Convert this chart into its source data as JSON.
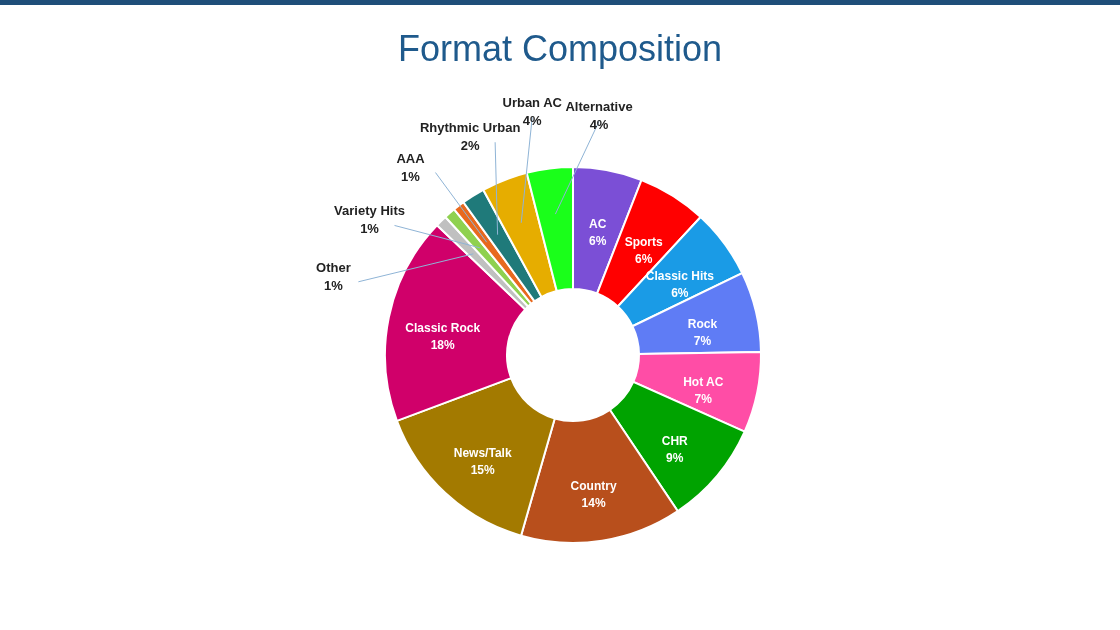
{
  "chart_data": {
    "type": "donut",
    "title": "Format Composition",
    "categories": [
      "AC",
      "Sports",
      "Classic Hits",
      "Rock",
      "Hot AC",
      "CHR",
      "Country",
      "News/Talk",
      "Classic Rock",
      "Other",
      "Variety Hits",
      "AAA",
      "Rhythmic Urban",
      "Urban AC",
      "Alternative"
    ],
    "values": [
      6,
      6,
      6,
      7,
      7,
      9,
      14,
      15,
      18,
      1,
      1,
      1,
      2,
      4,
      4
    ],
    "value_labels": [
      "6%",
      "6%",
      "6%",
      "7%",
      "7%",
      "9%",
      "14%",
      "15%",
      "18%",
      "1%",
      "1%",
      "1%",
      "2%",
      "4%",
      "4%"
    ],
    "colors": [
      "#7b4fd6",
      "#ff0000",
      "#1a9be6",
      "#5f7cf5",
      "#ff4da6",
      "#00a300",
      "#b84f1c",
      "#a37a00",
      "#d0006a",
      "#c0c0c0",
      "#8fd14f",
      "#e8691e",
      "#1f7a7a",
      "#e6ad00",
      "#1aff1a"
    ]
  }
}
